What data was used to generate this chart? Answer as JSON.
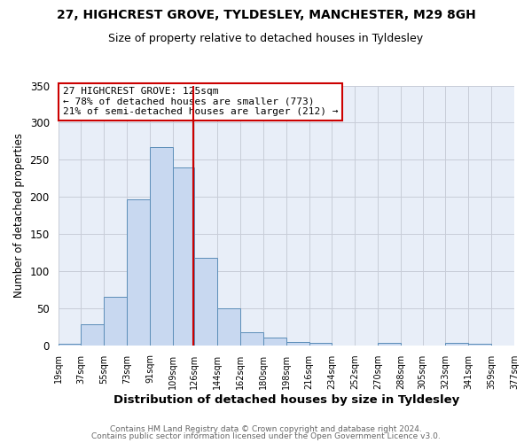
{
  "title1": "27, HIGHCREST GROVE, TYLDESLEY, MANCHESTER, M29 8GH",
  "title2": "Size of property relative to detached houses in Tyldesley",
  "xlabel": "Distribution of detached houses by size in Tyldesley",
  "ylabel": "Number of detached properties",
  "bin_edges": [
    19,
    37,
    55,
    73,
    91,
    109,
    126,
    144,
    162,
    180,
    198,
    216,
    234,
    252,
    270,
    288,
    305,
    323,
    341,
    359,
    377
  ],
  "bin_counts": [
    2,
    28,
    65,
    197,
    267,
    240,
    118,
    50,
    18,
    11,
    5,
    3,
    0,
    0,
    3,
    0,
    0,
    3,
    2,
    0
  ],
  "tick_labels": [
    "19sqm",
    "37sqm",
    "55sqm",
    "73sqm",
    "91sqm",
    "109sqm",
    "126sqm",
    "144sqm",
    "162sqm",
    "180sqm",
    "198sqm",
    "216sqm",
    "234sqm",
    "252sqm",
    "270sqm",
    "288sqm",
    "305sqm",
    "323sqm",
    "341sqm",
    "359sqm",
    "377sqm"
  ],
  "bar_color": "#c8d8f0",
  "bar_edge_color": "#5b8db8",
  "vline_x": 125,
  "vline_color": "#cc0000",
  "ylim": [
    0,
    350
  ],
  "yticks": [
    0,
    50,
    100,
    150,
    200,
    250,
    300,
    350
  ],
  "annotation_title": "27 HIGHCREST GROVE: 125sqm",
  "annotation_line1": "← 78% of detached houses are smaller (773)",
  "annotation_line2": "21% of semi-detached houses are larger (212) →",
  "annotation_box_color": "#ffffff",
  "annotation_box_edge": "#cc0000",
  "footer1": "Contains HM Land Registry data © Crown copyright and database right 2024.",
  "footer2": "Contains public sector information licensed under the Open Government Licence v3.0.",
  "bg_color": "#ffffff",
  "plot_bg_color": "#e8eef8",
  "grid_color": "#c8ccd8"
}
